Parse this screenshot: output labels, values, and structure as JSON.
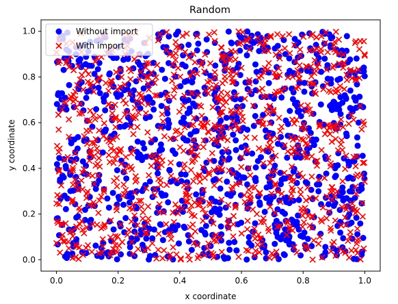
{
  "chart_data": {
    "type": "scatter",
    "title": "Random",
    "xlabel": "x coordinate",
    "ylabel": "y coordinate",
    "xlim": [
      -0.05,
      1.05
    ],
    "ylim": [
      -0.05,
      1.05
    ],
    "xticks": [
      "0.0",
      "0.2",
      "0.4",
      "0.6",
      "0.8",
      "1.0"
    ],
    "yticks": [
      "0.0",
      "0.2",
      "0.4",
      "0.6",
      "0.8",
      "1.0"
    ],
    "xtick_values": [
      0,
      0.2,
      0.4,
      0.6,
      0.8,
      1.0
    ],
    "ytick_values": [
      0,
      0.2,
      0.4,
      0.6,
      0.8,
      1.0
    ],
    "grid": false,
    "legend_position": "top-left",
    "series": [
      {
        "name": "Without import",
        "marker": "circle",
        "color": "#0000ff",
        "distribution": "uniform random in [0,1] x [0,1]",
        "count": 1000,
        "x": [
          0.02,
          0.05,
          0.09,
          0.13,
          0.18,
          0.22,
          0.27,
          0.31,
          0.36,
          0.41,
          0.45,
          0.5,
          0.55,
          0.59,
          0.64,
          0.68,
          0.73,
          0.78,
          0.82,
          0.87,
          0.91,
          0.96,
          0.99,
          0.03,
          0.07,
          0.11,
          0.16,
          0.2,
          0.25,
          0.29,
          0.34,
          0.38,
          0.43,
          0.47,
          0.52,
          0.57,
          0.61,
          0.66,
          0.7,
          0.75,
          0.8,
          0.84,
          0.89,
          0.93,
          0.98
        ],
        "y": [
          0.98,
          0.02,
          0.52,
          0.33,
          0.77,
          0.12,
          0.9,
          0.45,
          0.64,
          0.21,
          0.83,
          0.06,
          0.58,
          0.37,
          0.95,
          0.27,
          0.71,
          0.15,
          0.49,
          0.88,
          0.04,
          0.66,
          0.31,
          0.41,
          0.19,
          0.74,
          0.57,
          0.93,
          0.08,
          0.62,
          0.29,
          0.85,
          0.47,
          0.13,
          0.69,
          0.38,
          0.97,
          0.24,
          0.55,
          0.81,
          0.1,
          0.43,
          0.79,
          0.26,
          0.6
        ]
      },
      {
        "name": "With import",
        "marker": "x",
        "color": "#ff0000",
        "distribution": "uniform random in [0,1] x [0,1]",
        "count": 1000,
        "x": [
          0.01,
          0.06,
          0.1,
          0.15,
          0.19,
          0.24,
          0.28,
          0.33,
          0.37,
          0.42,
          0.46,
          0.51,
          0.56,
          0.6,
          0.65,
          0.69,
          0.74,
          0.79,
          0.83,
          0.88,
          0.92,
          0.97,
          0.04,
          0.08,
          0.12,
          0.17,
          0.21,
          0.26,
          0.3,
          0.35,
          0.39,
          0.44,
          0.48,
          0.53,
          0.58,
          0.62,
          0.67,
          0.71,
          0.76,
          0.81,
          0.85,
          0.9,
          0.94,
          0.99
        ],
        "y": [
          0.87,
          0.35,
          0.61,
          0.09,
          0.44,
          0.79,
          0.18,
          0.96,
          0.53,
          0.28,
          0.72,
          0.01,
          0.39,
          0.84,
          0.2,
          0.67,
          0.5,
          0.92,
          0.14,
          0.59,
          0.76,
          0.32,
          0.05,
          0.99,
          0.25,
          0.68,
          0.42,
          0.11,
          0.86,
          0.54,
          0.35,
          0.73,
          0.02,
          0.63,
          0.91,
          0.17,
          0.48,
          0.8,
          0.36,
          0.65,
          0.07,
          0.94,
          0.22,
          0.57
        ]
      }
    ]
  }
}
